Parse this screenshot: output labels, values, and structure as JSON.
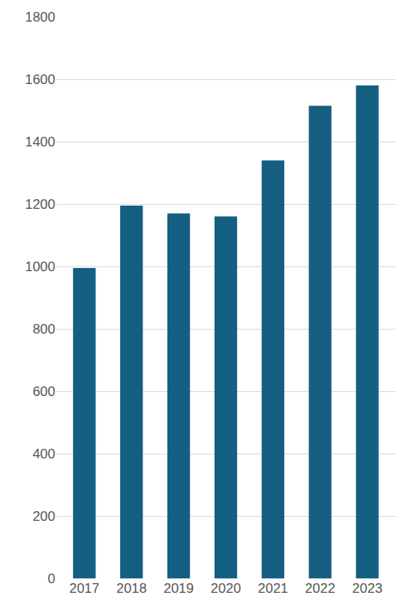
{
  "chart_data": {
    "type": "bar",
    "categories": [
      "2017",
      "2018",
      "2019",
      "2020",
      "2021",
      "2022",
      "2023"
    ],
    "values": [
      995,
      1195,
      1170,
      1160,
      1340,
      1515,
      1580
    ],
    "color": "#155f82",
    "ylim": [
      0,
      1800
    ],
    "yticks": [
      0,
      200,
      400,
      600,
      800,
      1000,
      1200,
      1400,
      1600,
      1800
    ],
    "grid": true
  }
}
